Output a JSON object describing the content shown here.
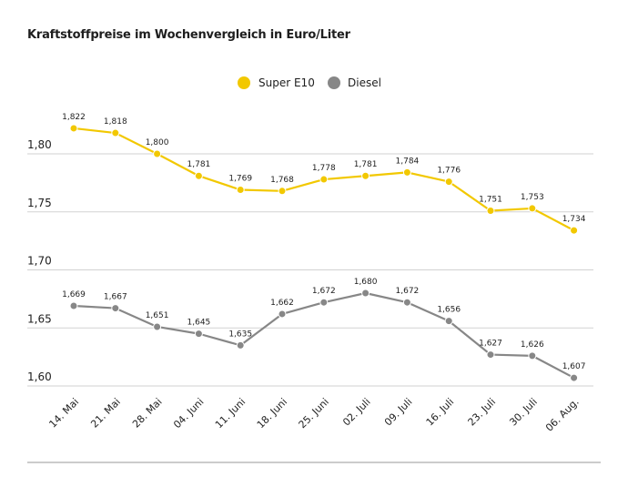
{
  "chart_data": {
    "type": "line",
    "title": "Kraftstoffpreise im Wochenvergleich in Euro/Liter",
    "categories": [
      "14. Mai",
      "21. Mai",
      "28. Mai",
      "04. Juni",
      "11. Juni",
      "18. Juni",
      "25. Juni",
      "02. Juli",
      "09. Juli",
      "16. Juli",
      "23. Juli",
      "30. Juli",
      "06. Aug."
    ],
    "series": [
      {
        "name": "Super E10",
        "color": "#f2c800",
        "values": [
          1.822,
          1.818,
          1.8,
          1.781,
          1.769,
          1.768,
          1.778,
          1.781,
          1.784,
          1.776,
          1.751,
          1.753,
          1.734
        ],
        "labels": [
          "1,822",
          "1,818",
          "1,800",
          "1,781",
          "1,769",
          "1,768",
          "1,778",
          "1,781",
          "1,784",
          "1,776",
          "1,751",
          "1,753",
          "1,734"
        ]
      },
      {
        "name": "Diesel",
        "color": "#878787",
        "values": [
          1.669,
          1.667,
          1.651,
          1.645,
          1.635,
          1.662,
          1.672,
          1.68,
          1.672,
          1.656,
          1.627,
          1.626,
          1.607
        ],
        "labels": [
          "1,669",
          "1,667",
          "1,651",
          "1,645",
          "1,635",
          "1,662",
          "1,672",
          "1,680",
          "1,672",
          "1,656",
          "1,627",
          "1,626",
          "1,607"
        ]
      }
    ],
    "yticks": [
      1.6,
      1.65,
      1.7,
      1.75,
      1.8
    ],
    "ytick_labels": [
      "1,60",
      "1,65",
      "1,70",
      "1,75",
      "1,80"
    ],
    "ylim": [
      1.6,
      1.85
    ],
    "xlabel": "",
    "ylabel": "",
    "grid": true,
    "legend": "top-center"
  }
}
